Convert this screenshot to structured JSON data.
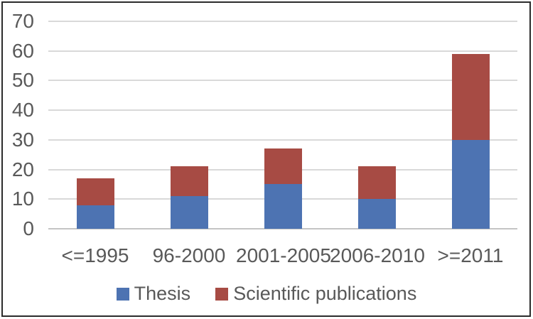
{
  "chart_data": {
    "type": "bar",
    "stacked": true,
    "title": "",
    "xlabel": "",
    "ylabel": "",
    "categories": [
      "<=1995",
      "96-2000",
      "2001-2005",
      "2006-2010",
      ">=2011"
    ],
    "series": [
      {
        "name": "Thesis",
        "color": "#4D73B2",
        "values": [
          8,
          11,
          15,
          10,
          30
        ]
      },
      {
        "name": "Scientific publications",
        "color": "#A74B44",
        "values": [
          9,
          10,
          12,
          11,
          29
        ]
      }
    ],
    "ylim": [
      0,
      70
    ],
    "yticks": [
      0,
      10,
      20,
      30,
      40,
      50,
      60,
      70
    ],
    "grid": true,
    "legend_position": "bottom"
  },
  "style": {
    "grid_color": "#D9D9D9",
    "axis_line_color": "#C4C4C4",
    "label_color": "#595959",
    "frame_border_color": "#2B2B2B",
    "background": "#FFFFFF"
  }
}
